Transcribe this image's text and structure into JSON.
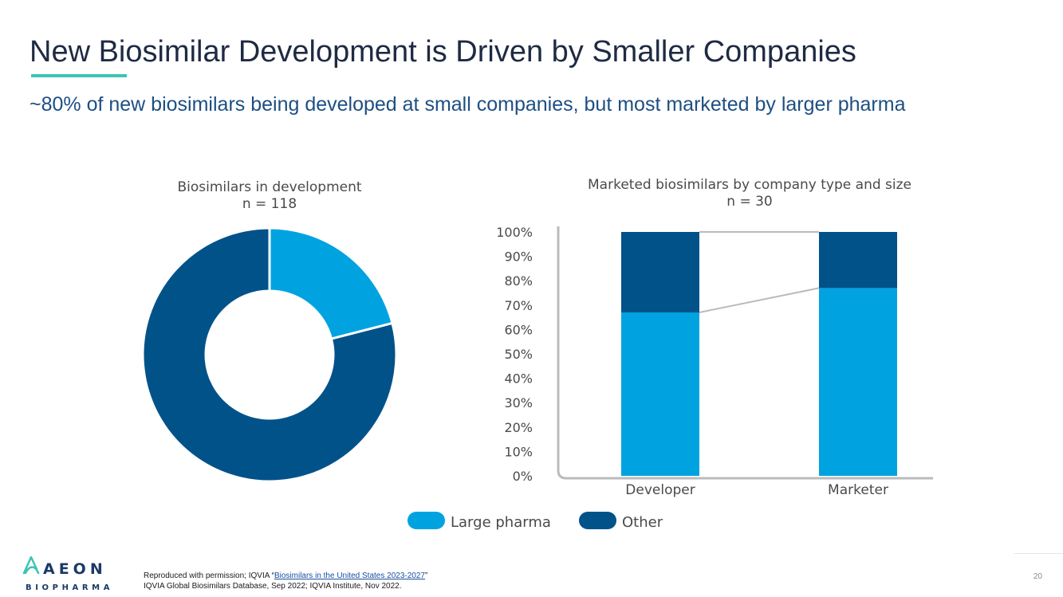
{
  "header": {
    "title": "New Biosimilar Development is Driven by Smaller Companies",
    "subtitle": "~80% of new biosimilars being developed at small companies, but most marketed by larger pharma",
    "accent_color": "#3cc5b3"
  },
  "chart_data": [
    {
      "type": "pie",
      "style": "donut",
      "title": "Biosimilars in development",
      "subtitle": "n = 118",
      "slices": [
        {
          "label": "Large pharma",
          "value": 21,
          "color": "#00a3e0"
        },
        {
          "label": "Other",
          "value": 79,
          "color": "#02528a"
        }
      ]
    },
    {
      "type": "bar",
      "stacked": true,
      "percent": true,
      "title": "Marketed biosimilars by company type and size",
      "subtitle": "n = 30",
      "categories": [
        "Developer",
        "Marketer"
      ],
      "series": [
        {
          "name": "Large pharma",
          "values": [
            67,
            77
          ],
          "color": "#00a3e0"
        },
        {
          "name": "Other",
          "values": [
            33,
            23
          ],
          "color": "#02528a"
        }
      ],
      "yticks": [
        "0%",
        "10%",
        "20%",
        "30%",
        "40%",
        "50%",
        "60%",
        "70%",
        "80%",
        "90%",
        "100%"
      ],
      "ylim": [
        0,
        100
      ],
      "xlabel": "",
      "ylabel": ""
    }
  ],
  "legend": [
    {
      "label": "Large pharma",
      "color": "#00a3e0"
    },
    {
      "label": "Other",
      "color": "#02528a"
    }
  ],
  "footer": {
    "credit_prefix": "Reproduced with permission; IQVIA “",
    "credit_link": "Biosimilars in the United States 2023-2027",
    "credit_suffix": "”",
    "source": "IQVIA Global Biosimilars Database, Sep 2022; IQVIA Institute, Nov 2022.",
    "page_number": "20"
  },
  "logo": {
    "line1": "AEON",
    "line2": "BIOPHARMA"
  }
}
